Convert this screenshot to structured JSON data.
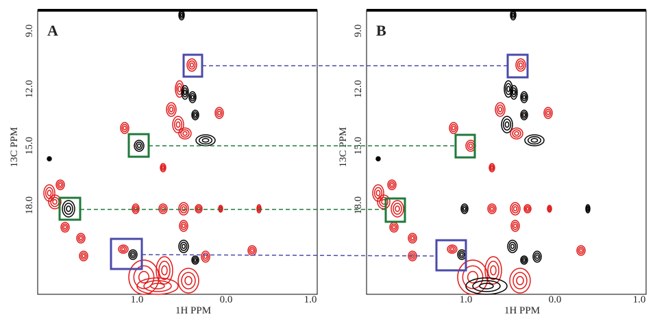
{
  "panels": [
    {
      "label": "A",
      "y_axis_label": "13C PPM",
      "x_axis_label": "1H PPM",
      "y_ticks": [
        "9.0",
        "12.0",
        "15.0",
        "18.0"
      ],
      "x_ticks": [
        "1.0",
        "0.0",
        "1.0"
      ]
    },
    {
      "label": "B",
      "y_axis_label": "13C PPM",
      "x_axis_label": "1H PPM",
      "y_ticks": [
        "9.0",
        "12.0",
        "15.0",
        "18.0"
      ],
      "x_ticks": [
        "1.0",
        "0.0",
        "1.0"
      ]
    }
  ]
}
